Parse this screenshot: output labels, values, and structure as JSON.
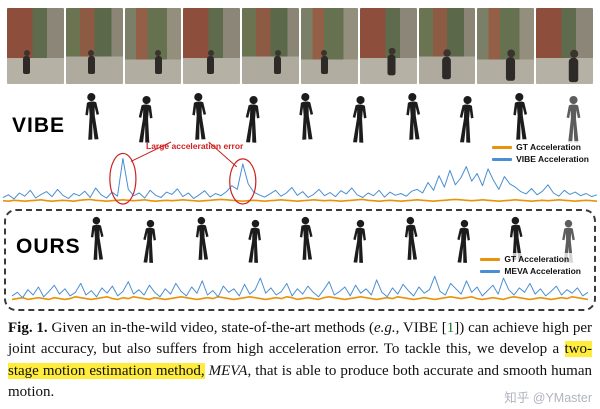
{
  "sections": {
    "vibe_label": "VIBE",
    "ours_label": "OURS"
  },
  "colors": {
    "highlight": "#ffec3d",
    "ref_green": "#1a7a2a",
    "annotation_red": "#cc2222",
    "gt_orange": "#e8930c",
    "accel_blue": "#4a8fd3"
  },
  "caption": {
    "fig_label": "Fig. 1.",
    "t1": " Given an in-the-wild video, state-of-the-art methods (",
    "eg": "e.g.",
    "t2": ", VIBE [",
    "ref": "1",
    "t3": "]) can achieve high per joint accuracy, but also suffers from high acceleration error. To tackle this, we develop a ",
    "hl": "two-stage motion estimation method,",
    "t4": " ",
    "meva": "MEVA",
    "t5": ", that is able to produce both accurate and smooth human motion."
  },
  "watermark": "知乎 @YMaster",
  "chart_data": [
    {
      "type": "line",
      "title": "",
      "xlabel": "",
      "ylabel": "",
      "ylim": [
        0,
        110
      ],
      "grid": false,
      "legend_position": "upper right",
      "annotations": {
        "label": "Large acceleration error",
        "circled_point_indices": [
          22,
          44
        ]
      },
      "series": [
        {
          "name": "GT Acceleration",
          "color": "#e8930c",
          "width": 1.6,
          "values": [
            5,
            4,
            6,
            5,
            4,
            5,
            6,
            7,
            5,
            4,
            5,
            6,
            5,
            4,
            6,
            7,
            8,
            6,
            5,
            4,
            5,
            6,
            7,
            6,
            5,
            6,
            7,
            5,
            4,
            5,
            6,
            5,
            6,
            7,
            6,
            5,
            4,
            5,
            6,
            7,
            8,
            7,
            6,
            5,
            4,
            5,
            6,
            5,
            4,
            5,
            6,
            7,
            6,
            5,
            4,
            5,
            6,
            7,
            6,
            5,
            6,
            5,
            4,
            5,
            6,
            7,
            8,
            6,
            5,
            4,
            5,
            6,
            5,
            4,
            5,
            6,
            7,
            6,
            5,
            4,
            5,
            6,
            7,
            8,
            7,
            6,
            5,
            6,
            7,
            6,
            5,
            4,
            5,
            6,
            7,
            6,
            5,
            4,
            5,
            6,
            5,
            6,
            7,
            6,
            5,
            4,
            5,
            6,
            5,
            4
          ]
        },
        {
          "name": "VIBE Acceleration",
          "color": "#4a8fd3",
          "width": 1,
          "values": [
            12,
            18,
            9,
            22,
            15,
            28,
            11,
            19,
            25,
            14,
            30,
            17,
            10,
            21,
            16,
            26,
            12,
            33,
            18,
            11,
            24,
            15,
            98,
            30,
            16,
            22,
            11,
            28,
            17,
            12,
            24,
            19,
            31,
            14,
            22,
            10,
            18,
            27,
            13,
            21,
            16,
            25,
            38,
            30,
            86,
            42,
            24,
            18,
            13,
            20,
            28,
            15,
            22,
            34,
            17,
            25,
            12,
            19,
            30,
            16,
            23,
            14,
            27,
            20,
            33,
            18,
            12,
            22,
            16,
            28,
            13,
            24,
            17,
            21,
            15,
            26,
            30,
            22,
            45,
            28,
            60,
            35,
            72,
            40,
            55,
            80,
            48,
            65,
            38,
            75,
            50,
            30,
            58,
            42,
            35,
            25,
            20,
            32,
            18,
            26,
            40,
            22,
            15,
            28,
            19,
            24,
            16,
            21,
            14,
            18
          ]
        }
      ]
    },
    {
      "type": "line",
      "title": "",
      "xlabel": "",
      "ylabel": "",
      "ylim": [
        0,
        45
      ],
      "grid": false,
      "legend_position": "upper right",
      "series": [
        {
          "name": "GT Acceleration",
          "color": "#e8930c",
          "width": 1.6,
          "values": [
            4,
            5,
            6,
            4,
            5,
            6,
            5,
            4,
            6,
            5,
            4,
            5,
            7,
            6,
            5,
            4,
            5,
            6,
            7,
            5,
            4,
            6,
            5,
            7,
            6,
            5,
            4,
            6,
            5,
            4,
            5,
            6,
            7,
            6,
            5,
            4,
            5,
            6,
            5,
            7,
            6,
            5,
            4,
            5,
            6,
            7,
            6,
            5,
            4,
            5,
            6,
            5,
            7,
            6,
            4,
            5,
            6,
            5,
            4,
            6,
            7,
            6,
            5,
            4,
            5,
            6,
            7,
            6,
            5,
            4,
            5,
            6,
            5,
            7,
            6,
            5,
            4,
            5,
            6,
            5,
            4,
            5,
            6,
            7,
            6,
            5,
            6,
            7,
            5,
            4,
            5,
            6,
            5,
            4,
            6,
            7,
            6,
            5,
            4,
            5,
            6,
            5,
            4,
            5,
            6,
            5,
            7,
            6,
            5,
            4
          ]
        },
        {
          "name": "MEVA Acceleration",
          "color": "#4a8fd3",
          "width": 1,
          "values": [
            8,
            12,
            6,
            15,
            9,
            18,
            7,
            13,
            20,
            10,
            16,
            8,
            12,
            22,
            9,
            14,
            7,
            17,
            11,
            19,
            8,
            13,
            24,
            10,
            15,
            9,
            20,
            12,
            7,
            16,
            10,
            22,
            13,
            8,
            18,
            11,
            25,
            9,
            14,
            7,
            19,
            12,
            16,
            8,
            21,
            10,
            15,
            28,
            11,
            17,
            9,
            13,
            22,
            8,
            16,
            10,
            19,
            12,
            7,
            15,
            24,
            9,
            13,
            18,
            8,
            20,
            11,
            16,
            9,
            26,
            12,
            7,
            17,
            10,
            21,
            14,
            8,
            18,
            11,
            15,
            30,
            13,
            9,
            22,
            16,
            10,
            25,
            12,
            18,
            8,
            14,
            20,
            10,
            28,
            15,
            9,
            17,
            12,
            22,
            10,
            16,
            8,
            13,
            19,
            9,
            15,
            11,
            17,
            8,
            12
          ]
        }
      ]
    }
  ]
}
